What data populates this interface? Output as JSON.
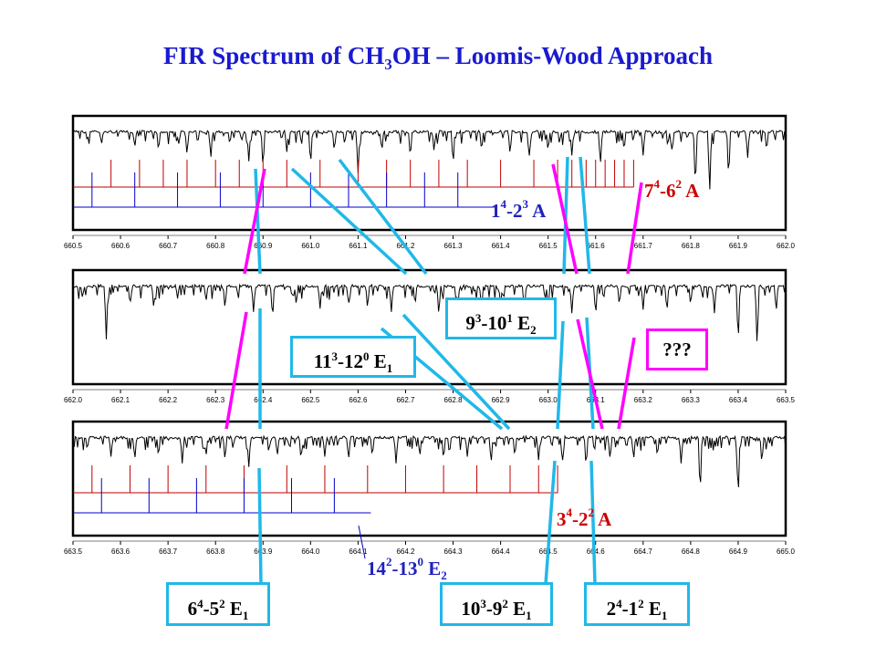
{
  "title": {
    "pre": "FIR Spectrum of CH",
    "sub": "3",
    "post": "OH – Loomis-Wood Approach"
  },
  "colors": {
    "red": "#c00000",
    "blue": "#0000cc",
    "magenta": "#ff00ff",
    "cyan": "#20b8e8",
    "labelRed": "#cc0000",
    "labelBlue": "#2020c0"
  },
  "chart_data": [
    {
      "type": "line",
      "xlim": [
        660.5,
        662.0
      ],
      "ticks": [
        "660.5",
        "660.6",
        "660.7",
        "660.8",
        "660.9",
        "661.0",
        "661.1",
        "661.2",
        "661.3",
        "661.4",
        "661.5",
        "661.6",
        "661.7",
        "661.8",
        "661.9",
        "662.0"
      ],
      "red_lines": [
        660.58,
        660.64,
        660.69,
        660.74,
        660.8,
        660.85,
        660.9,
        660.95,
        661.02,
        661.1,
        661.16,
        661.21,
        661.27,
        661.33,
        661.4,
        661.47,
        661.52,
        661.55,
        661.58,
        661.6,
        661.62,
        661.64,
        661.66,
        661.68
      ],
      "blue_lines": [
        660.54,
        660.63,
        660.72,
        660.81,
        660.9,
        661.0,
        661.08,
        661.16,
        661.24,
        661.31
      ],
      "absorptions": [
        [
          660.53,
          0.15
        ],
        [
          660.56,
          0.2
        ],
        [
          660.63,
          0.25
        ],
        [
          660.68,
          0.3
        ],
        [
          660.74,
          0.35
        ],
        [
          660.79,
          0.4
        ],
        [
          660.83,
          0.2
        ],
        [
          660.87,
          0.45
        ],
        [
          660.9,
          0.55
        ],
        [
          660.95,
          0.3
        ],
        [
          661.0,
          0.5
        ],
        [
          661.05,
          0.3
        ],
        [
          661.1,
          0.6
        ],
        [
          661.15,
          0.3
        ],
        [
          661.21,
          0.4
        ],
        [
          661.26,
          0.3
        ],
        [
          661.3,
          0.5
        ],
        [
          661.36,
          0.3
        ],
        [
          661.42,
          0.35
        ],
        [
          661.46,
          0.4
        ],
        [
          661.5,
          0.3
        ],
        [
          661.55,
          0.35
        ],
        [
          661.61,
          0.5
        ],
        [
          661.66,
          0.3
        ],
        [
          661.7,
          0.35
        ],
        [
          661.76,
          0.3
        ],
        [
          661.81,
          0.85
        ],
        [
          661.84,
          0.9
        ],
        [
          661.88,
          0.7
        ],
        [
          661.92,
          0.4
        ],
        [
          661.96,
          0.3
        ]
      ]
    },
    {
      "type": "line",
      "xlim": [
        662.0,
        663.5
      ],
      "ticks": [
        "662.0",
        "662.1",
        "662.2",
        "662.3",
        "662.4",
        "662.5",
        "662.6",
        "662.7",
        "662.8",
        "662.9",
        "663.0",
        "663.1",
        "663.2",
        "663.3",
        "663.4",
        "663.5"
      ],
      "red_lines": [],
      "blue_lines": [],
      "absorptions": [
        [
          662.02,
          0.2
        ],
        [
          662.07,
          0.8
        ],
        [
          662.12,
          0.3
        ],
        [
          662.17,
          0.35
        ],
        [
          662.22,
          0.2
        ],
        [
          662.28,
          0.25
        ],
        [
          662.32,
          0.35
        ],
        [
          662.38,
          0.4
        ],
        [
          662.42,
          0.5
        ],
        [
          662.47,
          0.3
        ],
        [
          662.52,
          0.35
        ],
        [
          662.58,
          0.3
        ],
        [
          662.62,
          0.35
        ],
        [
          662.67,
          0.4
        ],
        [
          662.72,
          0.3
        ],
        [
          662.77,
          0.45
        ],
        [
          662.81,
          0.3
        ],
        [
          662.86,
          0.35
        ],
        [
          662.9,
          0.3
        ],
        [
          662.95,
          0.4
        ],
        [
          663.0,
          0.35
        ],
        [
          663.05,
          0.4
        ],
        [
          663.1,
          0.45
        ],
        [
          663.15,
          0.3
        ],
        [
          663.2,
          0.35
        ],
        [
          663.25,
          0.4
        ],
        [
          663.3,
          0.3
        ],
        [
          663.35,
          0.4
        ],
        [
          663.4,
          0.85
        ],
        [
          663.44,
          0.9
        ],
        [
          663.48,
          0.4
        ]
      ]
    },
    {
      "type": "line",
      "xlim": [
        663.5,
        665.0
      ],
      "ticks": [
        "663.5",
        "663.6",
        "663.7",
        "663.8",
        "663.9",
        "664.0",
        "664.1",
        "664.2",
        "664.3",
        "664.4",
        "664.5",
        "664.6",
        "664.7",
        "664.8",
        "664.9",
        "665.0"
      ],
      "red_lines": [
        663.54,
        663.62,
        663.7,
        663.78,
        663.86,
        663.95,
        664.03,
        664.12,
        664.2,
        664.28,
        664.35,
        664.42,
        664.48,
        664.52
      ],
      "blue_lines": [
        663.56,
        663.66,
        663.76,
        663.86,
        663.96,
        664.05
      ],
      "absorptions": [
        [
          663.53,
          0.2
        ],
        [
          663.58,
          0.3
        ],
        [
          663.63,
          0.35
        ],
        [
          663.68,
          0.3
        ],
        [
          663.73,
          0.4
        ],
        [
          663.78,
          0.3
        ],
        [
          663.82,
          0.35
        ],
        [
          663.87,
          0.45
        ],
        [
          663.93,
          0.3
        ],
        [
          663.98,
          0.35
        ],
        [
          664.03,
          0.3
        ],
        [
          664.08,
          0.35
        ],
        [
          664.13,
          0.3
        ],
        [
          664.18,
          0.4
        ],
        [
          664.23,
          0.3
        ],
        [
          664.28,
          0.35
        ],
        [
          664.33,
          0.3
        ],
        [
          664.38,
          0.4
        ],
        [
          664.43,
          0.3
        ],
        [
          664.48,
          0.35
        ],
        [
          664.53,
          0.4
        ],
        [
          664.58,
          0.45
        ],
        [
          664.63,
          0.3
        ],
        [
          664.68,
          0.35
        ],
        [
          664.73,
          0.3
        ],
        [
          664.78,
          0.4
        ],
        [
          664.82,
          0.85
        ],
        [
          664.9,
          0.9
        ],
        [
          664.95,
          0.4
        ]
      ]
    }
  ],
  "labels": {
    "a74": {
      "n": "7",
      "s1": "4",
      "m": "-6",
      "s2": "2",
      "t": " A"
    },
    "a14": {
      "n": "1",
      "s1": "4",
      "m": "-2",
      "s2": "3",
      "t": " A"
    },
    "a34": {
      "n": "3",
      "s1": "4",
      "m": "-2",
      "s2": "2",
      "t": " A"
    },
    "e142": {
      "n": "14",
      "s1": "2",
      "m": "-13",
      "s2": "0",
      "t": " E",
      "s3": "2"
    }
  },
  "boxes": {
    "b93": {
      "n": "9",
      "s1": "3",
      "m": "-10",
      "s2": "1",
      "t": " E",
      "s3": "2"
    },
    "b113": {
      "n": "11",
      "s1": "3",
      "m": "-12",
      "s2": "0",
      "t": " E",
      "s3": "1"
    },
    "q": "???",
    "b64": {
      "n": "6",
      "s1": "4",
      "m": "-5",
      "s2": "2",
      "t": " E",
      "s3": "1"
    },
    "b103": {
      "n": "10",
      "s1": "3",
      "m": "-9",
      "s2": "2",
      "t": " E",
      "s3": "1"
    },
    "b24": {
      "n": "2",
      "s1": "4",
      "m": "-1",
      "s2": "2",
      "t": " E",
      "s3": "1"
    }
  }
}
